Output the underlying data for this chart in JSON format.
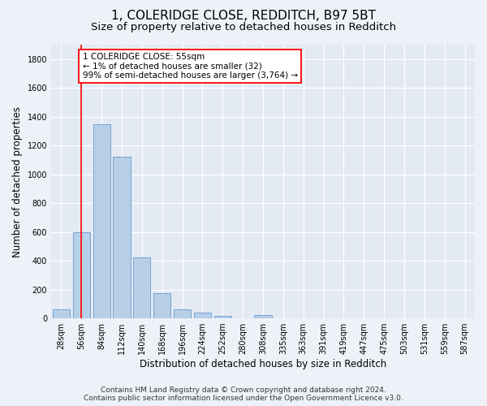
{
  "title_line1": "1, COLERIDGE CLOSE, REDDITCH, B97 5BT",
  "title_line2": "Size of property relative to detached houses in Redditch",
  "xlabel": "Distribution of detached houses by size in Redditch",
  "ylabel": "Number of detached properties",
  "bar_labels": [
    "28sqm",
    "56sqm",
    "84sqm",
    "112sqm",
    "140sqm",
    "168sqm",
    "196sqm",
    "224sqm",
    "252sqm",
    "280sqm",
    "308sqm",
    "335sqm",
    "363sqm",
    "391sqm",
    "419sqm",
    "447sqm",
    "475sqm",
    "503sqm",
    "531sqm",
    "559sqm",
    "587sqm"
  ],
  "bar_values": [
    60,
    600,
    1350,
    1120,
    425,
    175,
    65,
    40,
    20,
    0,
    25,
    0,
    0,
    0,
    0,
    0,
    0,
    0,
    0,
    0,
    0
  ],
  "bar_color": "#b8cfe8",
  "bar_edgecolor": "#6699cc",
  "ylim": [
    0,
    1900
  ],
  "yticks": [
    0,
    200,
    400,
    600,
    800,
    1000,
    1200,
    1400,
    1600,
    1800
  ],
  "annotation_title": "1 COLERIDGE CLOSE: 55sqm",
  "annotation_line2": "← 1% of detached houses are smaller (32)",
  "annotation_line3": "99% of semi-detached houses are larger (3,764) →",
  "vline_x_index": 1,
  "footer_line1": "Contains HM Land Registry data © Crown copyright and database right 2024.",
  "footer_line2": "Contains public sector information licensed under the Open Government Licence v3.0.",
  "background_color": "#eef2f8",
  "plot_bg_color": "#e4eaf4",
  "grid_color": "#ffffff",
  "title_fontsize": 11,
  "subtitle_fontsize": 9.5,
  "axis_label_fontsize": 8.5,
  "tick_fontsize": 7,
  "annotation_fontsize": 7.5,
  "footer_fontsize": 6.5
}
